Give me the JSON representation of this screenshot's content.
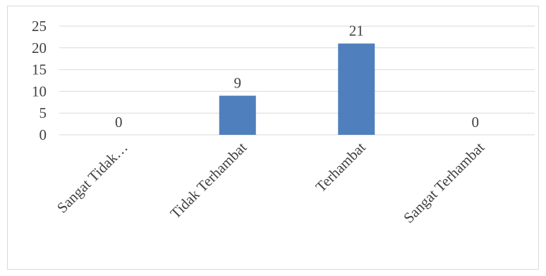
{
  "chart_data": {
    "type": "bar",
    "categories": [
      "Sangat Tidak…",
      "Tidak Terhambat",
      "Terhambat",
      "Sangat Terhambat"
    ],
    "values": [
      0,
      9,
      21,
      0
    ],
    "data_labels": [
      "0",
      "9",
      "21",
      "0"
    ],
    "ylim": [
      0,
      25
    ],
    "yticks": [
      "0",
      "5",
      "10",
      "15",
      "20",
      "25"
    ],
    "grid": true,
    "legend": "none",
    "bar_color": "#4f7fbd",
    "grid_color": "#d9d9d9"
  }
}
